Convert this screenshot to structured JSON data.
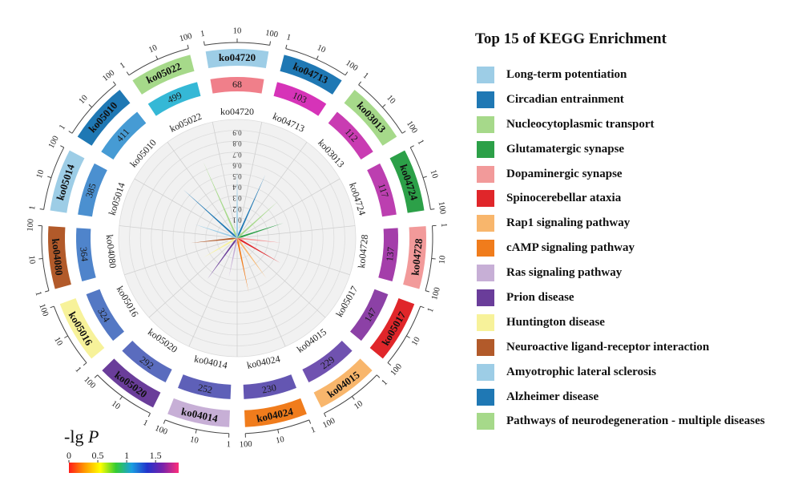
{
  "legend": {
    "title": "Top 15 of KEGG Enrichment"
  },
  "colorbar": {
    "title_text": "-lg",
    "title_var": "P",
    "ticks": [
      "0",
      "0.5",
      "1",
      "1.5"
    ],
    "tick_values": [
      0,
      0.5,
      1,
      1.5
    ],
    "max": 1.9,
    "colors": [
      "#ff1a1a",
      "#ff9900",
      "#ffff00",
      "#33cc33",
      "#1a9fe0",
      "#2233cc",
      "#7a22aa",
      "#ff2d7a"
    ]
  },
  "chart_data": {
    "type": "circos-radial-bar",
    "title": "Top 15 of KEGG Enrichment",
    "scale_ticks": [
      "1",
      "10",
      "100"
    ],
    "radial_ticks": [
      "0.1",
      "0.2",
      "0.3",
      "0.4",
      "0.5",
      "0.6",
      "0.7",
      "0.8",
      "0.9"
    ],
    "radial_max": 1.0,
    "terms": [
      {
        "id": "ko04720",
        "name": "Long-term potentiation",
        "color": "#9dcde6",
        "count": 68,
        "count_color": "#f07f8a",
        "rich": 0.55
      },
      {
        "id": "ko04713",
        "name": "Circadian entrainment",
        "color": "#1f78b4",
        "count": 103,
        "count_color": "#d633b8",
        "rich": 0.55
      },
      {
        "id": "ko03013",
        "name": "Nucleocytoplasmic transport",
        "color": "#a6d98a",
        "count": 112,
        "count_color": "#c93cb2",
        "rich": 0.42
      },
      {
        "id": "ko04724",
        "name": "Glutamatergic synapse",
        "color": "#2ca048",
        "count": 117,
        "count_color": "#bc3fb0",
        "rich": 0.36
      },
      {
        "id": "ko04728",
        "name": "Dopaminergic synapse",
        "color": "#f29a9a",
        "count": 137,
        "count_color": "#a43eaa",
        "rich": 0.32
      },
      {
        "id": "ko05017",
        "name": "Spinocerebellar ataxia",
        "color": "#e0262a",
        "count": 147,
        "count_color": "#8c41a6",
        "rich": 0.37
      },
      {
        "id": "ko04015",
        "name": "Rap1 signaling pathway",
        "color": "#f8b66c",
        "count": 229,
        "count_color": "#7052b0",
        "rich": 0.37
      },
      {
        "id": "ko04024",
        "name": "cAMP signaling pathway",
        "color": "#f07c1c",
        "count": 230,
        "count_color": "#6456b2",
        "rich": 0.42
      },
      {
        "id": "ko04014",
        "name": "Ras signaling pathway",
        "color": "#c7afd6",
        "count": 252,
        "count_color": "#5e60b8",
        "rich": 0.28
      },
      {
        "id": "ko05020",
        "name": "Prion disease",
        "color": "#6a3d9a",
        "count": 292,
        "count_color": "#5a6cbe",
        "rich": 0.38
      },
      {
        "id": "ko05016",
        "name": "Huntington disease",
        "color": "#f7f29a",
        "count": 324,
        "count_color": "#5478c4",
        "rich": 0.27
      },
      {
        "id": "ko04080",
        "name": "Neuroactive ligand-receptor interaction",
        "color": "#b25a2a",
        "count": 364,
        "count_color": "#4f84cb",
        "rich": 0.34
      },
      {
        "id": "ko05014",
        "name": "Amyotrophic lateral sclerosis",
        "color": "#9dcde6",
        "count": 385,
        "count_color": "#4b90d0",
        "rich": 0.32
      },
      {
        "id": "ko05010",
        "name": "Alzheimer disease",
        "color": "#1f78b4",
        "count": 411,
        "count_color": "#469bd4",
        "rich": 0.58
      },
      {
        "id": "ko05022",
        "name": "Pathways of neurodegeneration - multiple diseases",
        "color": "#a6d98a",
        "count": 499,
        "count_color": "#35b8d6",
        "rich": 0.68
      }
    ]
  }
}
